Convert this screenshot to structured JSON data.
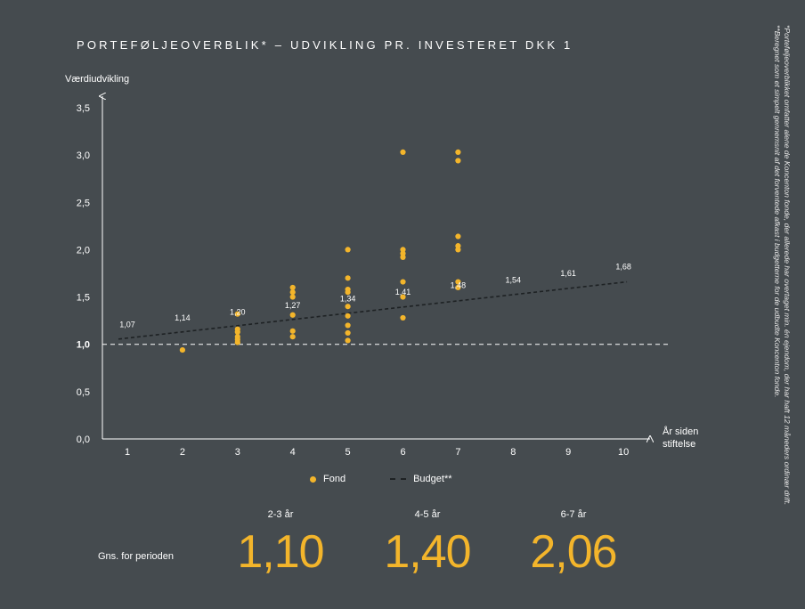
{
  "chart_data": {
    "type": "scatter",
    "title": "PORTEFØLJEOVERBLIK* – UDVIKLING PR. INVESTERET DKK 1",
    "ylabel": "Værdiudvikling",
    "xlabel_line1": "År siden",
    "xlabel_line2": "stiftelse",
    "x_ticks": [
      "1",
      "2",
      "3",
      "4",
      "5",
      "6",
      "7",
      "8",
      "9",
      "10"
    ],
    "y_ticks": [
      "0,0",
      "0,5",
      "1,0",
      "1,5",
      "2,0",
      "2,5",
      "3,0",
      "3,5"
    ],
    "y_tick_values": [
      0,
      0.5,
      1.0,
      1.5,
      2.0,
      2.5,
      3.0,
      3.5
    ],
    "xlim": [
      0.6,
      10.5
    ],
    "ylim": [
      0,
      3.6
    ],
    "reference_line": 1.0,
    "series": [
      {
        "name": "Fond",
        "kind": "points",
        "color": "#f3b52b",
        "points": [
          [
            2,
            0.94
          ],
          [
            3,
            1.32
          ],
          [
            3,
            1.16
          ],
          [
            3,
            1.13
          ],
          [
            3,
            1.08
          ],
          [
            3,
            1.05
          ],
          [
            3,
            1.02
          ],
          [
            4,
            1.6
          ],
          [
            4,
            1.55
          ],
          [
            4,
            1.5
          ],
          [
            4,
            1.31
          ],
          [
            4,
            1.14
          ],
          [
            4,
            1.08
          ],
          [
            5,
            2.0
          ],
          [
            5,
            1.7
          ],
          [
            5,
            1.58
          ],
          [
            5,
            1.55
          ],
          [
            5,
            1.4
          ],
          [
            5,
            1.3
          ],
          [
            5,
            1.2
          ],
          [
            5,
            1.12
          ],
          [
            5,
            1.04
          ],
          [
            6,
            3.03
          ],
          [
            6,
            2.0
          ],
          [
            6,
            1.96
          ],
          [
            6,
            1.92
          ],
          [
            6,
            1.66
          ],
          [
            6,
            1.5
          ],
          [
            6,
            1.28
          ],
          [
            7,
            3.03
          ],
          [
            7,
            2.94
          ],
          [
            7,
            2.14
          ],
          [
            7,
            2.04
          ],
          [
            7,
            2.0
          ],
          [
            7,
            1.66
          ],
          [
            7,
            1.6
          ]
        ]
      },
      {
        "name": "Budget**",
        "kind": "dashed-line",
        "color": "#1e2224",
        "x": [
          1,
          2,
          3,
          4,
          5,
          6,
          7,
          8,
          9,
          10
        ],
        "values": [
          1.07,
          1.14,
          1.2,
          1.27,
          1.34,
          1.41,
          1.48,
          1.54,
          1.61,
          1.68
        ],
        "labels": [
          "1,07",
          "1,14",
          "1,20",
          "1,27",
          "1,34",
          "1,41",
          "1,48",
          "1,54",
          "1,61",
          "1,68"
        ]
      }
    ]
  },
  "legend": {
    "fond": "Fond",
    "budget": "Budget**"
  },
  "periods": {
    "row_label": "Gns. for perioden",
    "items": [
      {
        "label": "2-3 år",
        "value": "1,10"
      },
      {
        "label": "4-5 år",
        "value": "1,40"
      },
      {
        "label": "6-7 år",
        "value": "2,06"
      }
    ]
  },
  "footnotes": {
    "line1": "*Porteføljeoverblikket omfatter alene de Koncenton fonde, der allerede har overtaget min. én ejendom, der har haft 12 måneders ordinær drift.",
    "line2": "**Beregnet som et simpelt gennemsnit af det forventede afkast i budgetterne for de udbudte Koncenton fonde."
  },
  "colors": {
    "background": "#454b4f",
    "accent": "#f3b52b",
    "budget_line": "#1e2224"
  }
}
